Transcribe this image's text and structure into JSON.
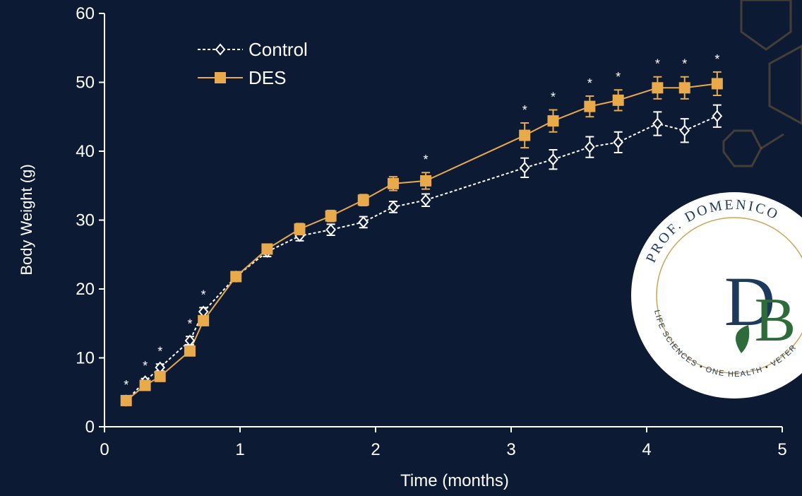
{
  "chart_data": {
    "type": "line",
    "xlabel": "Time (months)",
    "ylabel": "Body Weight (g)",
    "x": [
      0.16,
      0.3,
      0.41,
      0.63,
      0.73,
      0.97,
      1.2,
      1.44,
      1.67,
      1.91,
      2.13,
      2.37,
      3.1,
      3.31,
      3.58,
      3.79,
      4.08,
      4.28,
      4.52
    ],
    "series": [
      {
        "name": "Control",
        "color": "#ffffff",
        "marker": "diamond",
        "dashed": true,
        "values": [
          3.8,
          6.6,
          8.6,
          12.5,
          16.7,
          21.8,
          25.4,
          27.7,
          28.6,
          29.7,
          31.9,
          32.9,
          37.6,
          38.8,
          40.6,
          41.3,
          44.0,
          43.0,
          45.1
        ],
        "errors": [
          0.4,
          0.4,
          0.5,
          0.6,
          0.6,
          0.6,
          0.7,
          0.7,
          0.8,
          0.8,
          0.8,
          0.9,
          1.4,
          1.4,
          1.5,
          1.5,
          1.7,
          1.7,
          1.6
        ]
      },
      {
        "name": "DES",
        "color": "#e8aa4a",
        "marker": "square",
        "dashed": false,
        "values": [
          3.8,
          6.0,
          7.3,
          11.0,
          15.4,
          21.8,
          25.8,
          28.7,
          30.6,
          32.9,
          35.3,
          35.7,
          42.3,
          44.4,
          46.5,
          47.4,
          49.2,
          49.2,
          49.8
        ],
        "errors": [
          0.4,
          0.5,
          0.5,
          0.6,
          0.7,
          0.7,
          0.7,
          0.8,
          0.8,
          0.8,
          1.0,
          1.2,
          1.8,
          1.6,
          1.5,
          1.5,
          1.6,
          1.6,
          1.7
        ]
      }
    ],
    "significance_marker": "*",
    "significant": [
      true,
      true,
      true,
      true,
      true,
      false,
      false,
      false,
      false,
      false,
      false,
      true,
      true,
      true,
      true,
      true,
      true,
      true,
      true
    ],
    "xlim": [
      0,
      5
    ],
    "xticks": [
      0,
      1,
      2,
      3,
      4,
      5
    ],
    "ylim": [
      0,
      60
    ],
    "yticks": [
      0,
      10,
      20,
      30,
      40,
      50,
      60
    ],
    "grid": false,
    "legend": "upper-left"
  },
  "logo": {
    "top_text": "PROF. DOMENICO",
    "letter_1": "D",
    "letter_2": "B",
    "bottom_text": "LIFE SCIENCES • ONE HEALTH • VETER"
  }
}
